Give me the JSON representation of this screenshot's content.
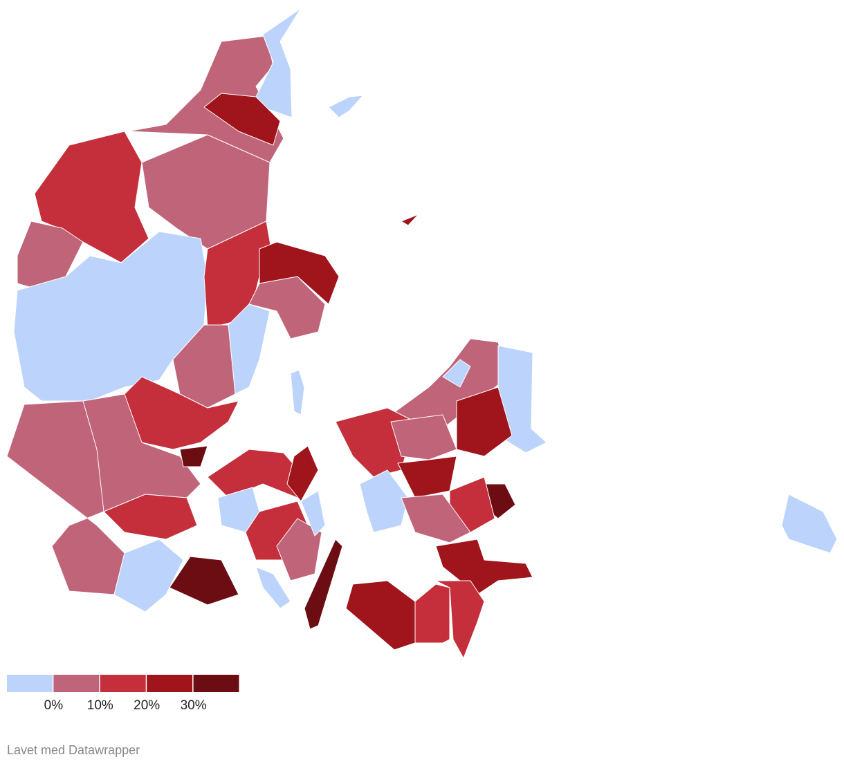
{
  "legend": {
    "colors": [
      "#bcd4fb",
      "#c06479",
      "#c42f3b",
      "#a0141c",
      "#6b0d12"
    ],
    "ticks": [
      {
        "value": 0,
        "label": "0%"
      },
      {
        "value": 10,
        "label": "10%"
      },
      {
        "value": 20,
        "label": "20%"
      },
      {
        "value": 30,
        "label": "30%"
      }
    ]
  },
  "footer": "Lavet med Datawrapper"
}
